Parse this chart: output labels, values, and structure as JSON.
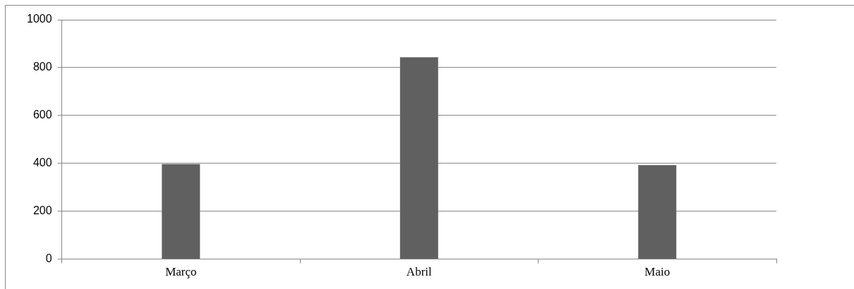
{
  "chart_data": {
    "type": "bar",
    "categories": [
      "Março",
      "Abril",
      "Maio"
    ],
    "values": [
      397,
      843,
      393
    ],
    "color": "#606060",
    "ylim": [
      0,
      1000
    ],
    "yticks": [
      0,
      200,
      400,
      600,
      800,
      1000
    ],
    "grid": "y",
    "legend": false
  }
}
